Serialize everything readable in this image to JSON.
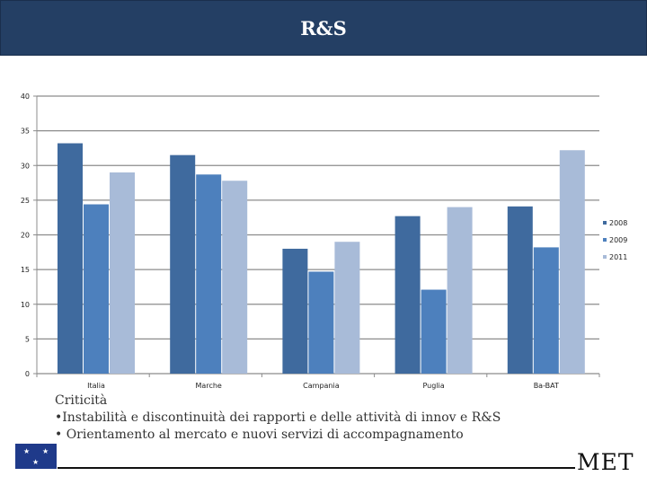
{
  "header": {
    "title": "R&S"
  },
  "chart_data": {
    "type": "bar",
    "title": "",
    "xlabel": "",
    "ylabel": "",
    "ylim": [
      0,
      40
    ],
    "yticks": [
      0,
      5,
      10,
      15,
      20,
      25,
      30,
      35,
      40
    ],
    "grid": true,
    "legend": "right",
    "categories": [
      "Italia",
      "Marche",
      "Campania",
      "Puglia",
      "Ba-BAT"
    ],
    "series": [
      {
        "name": "2008",
        "color": "#3f6a9e",
        "values": [
          33.2,
          31.5,
          18.0,
          22.7,
          24.1
        ]
      },
      {
        "name": "2009",
        "color": "#4d80bd",
        "values": [
          24.4,
          28.7,
          14.7,
          12.1,
          18.2
        ]
      },
      {
        "name": "2011",
        "color": "#a8bbd8",
        "values": [
          29.0,
          27.8,
          19.0,
          24.0,
          32.2
        ]
      }
    ]
  },
  "notes": {
    "heading": "Criticità",
    "bullet_1": "•Instabilità e discontinuità dei rapporti e delle attività di innov e R&S",
    "bullet_2": "• Orientamento al mercato e nuovi servizi di accompagnamento"
  },
  "footer": {
    "logo_text": "MET",
    "flag_icon": "eu-flag-icon"
  }
}
